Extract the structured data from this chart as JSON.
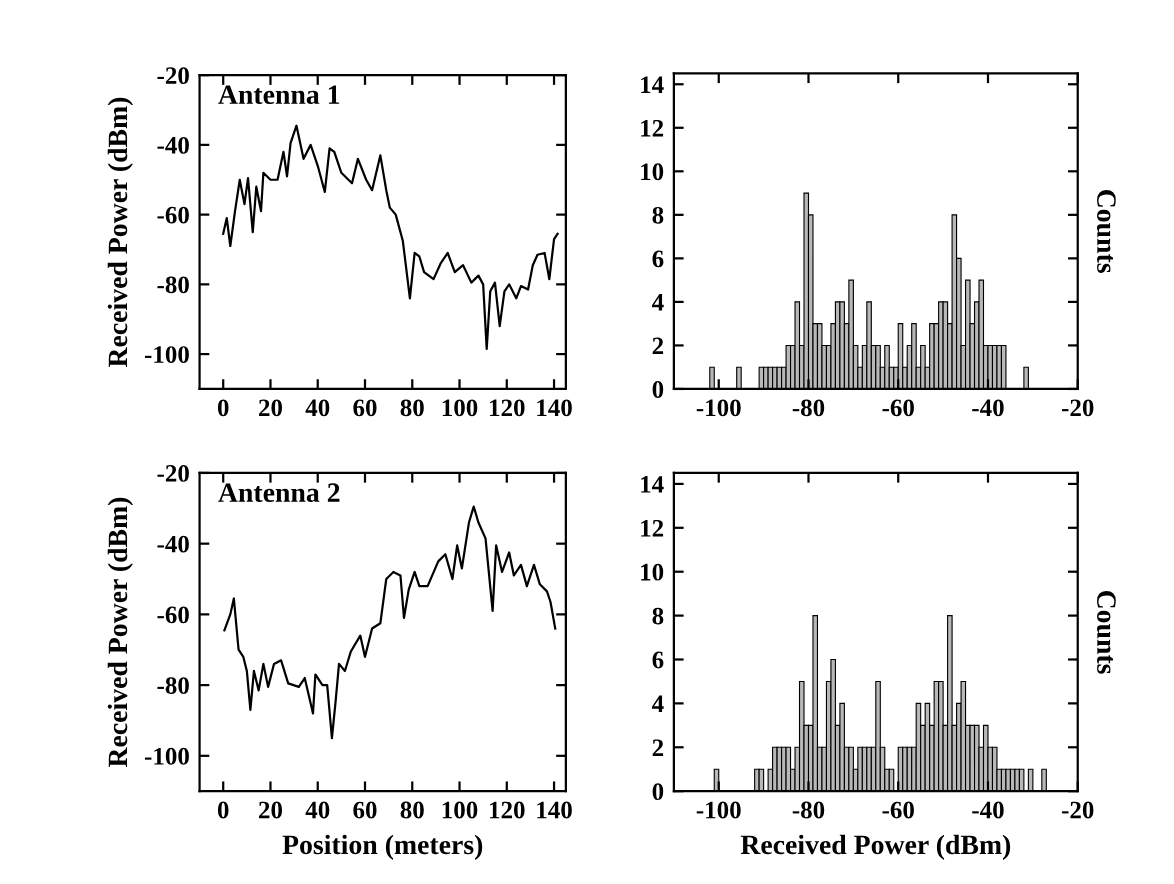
{
  "chart_data": [
    {
      "type": "line",
      "title": "Antenna 1",
      "ylabel": "Received Power (dBm)",
      "xlim": [
        -10,
        145
      ],
      "ylim": [
        -110,
        -20
      ],
      "xticks": [
        0,
        20,
        40,
        60,
        80,
        100,
        120,
        140
      ],
      "yticks": [
        -20,
        -40,
        -60,
        -80,
        -100
      ],
      "grid": false,
      "legend": false,
      "marker": "none",
      "line_style": "solid",
      "series": [
        {
          "color": "#000000",
          "x": [
            0,
            1.5,
            3,
            5,
            7,
            9,
            10.5,
            12.5,
            14,
            16,
            17,
            20,
            23,
            25.5,
            27,
            28.5,
            31,
            34,
            37,
            40,
            43,
            45,
            47,
            50,
            54.5,
            57,
            60.5,
            63,
            66.5,
            69,
            70.5,
            73,
            76,
            79,
            81,
            83,
            85,
            89,
            92,
            95,
            98,
            101.5,
            105,
            108,
            110,
            111.5,
            113,
            115,
            117,
            119,
            121,
            124,
            126,
            129,
            131,
            133,
            136,
            138,
            140,
            141.5
          ],
          "values": [
            -65.5,
            -61,
            -69,
            -59,
            -50,
            -57,
            -49.5,
            -65,
            -52,
            -59,
            -48,
            -50,
            -50,
            -42,
            -49,
            -39.5,
            -34.5,
            -44,
            -40,
            -46,
            -53.5,
            -41,
            -42,
            -48,
            -51,
            -44,
            -50,
            -53,
            -43,
            -53,
            -58,
            -60,
            -67.5,
            -84,
            -71,
            -72,
            -76.5,
            -78.5,
            -74,
            -71,
            -76.5,
            -74.5,
            -79.5,
            -77.5,
            -80,
            -98.5,
            -82,
            -79.5,
            -92,
            -82,
            -80,
            -84,
            -80.5,
            -81.5,
            -74.5,
            -71.5,
            -71,
            -78.5,
            -67,
            -65.5
          ]
        }
      ]
    },
    {
      "type": "histogram",
      "y2label": "Counts",
      "xlim": [
        -110,
        -20
      ],
      "ylim": [
        0,
        14.5
      ],
      "xticks": [
        -100,
        -80,
        -60,
        -40,
        -20
      ],
      "yticks": [
        0,
        2,
        4,
        6,
        8,
        10,
        12,
        14
      ],
      "grid": false,
      "legend": false,
      "color": "#b8b8b8",
      "bins": [
        -102,
        -101,
        -100,
        -99,
        -98,
        -97,
        -96,
        -95,
        -94,
        -93,
        -92,
        -91,
        -90,
        -89,
        -88,
        -87,
        -86,
        -85,
        -84,
        -83,
        -82,
        -81,
        -80,
        -79,
        -78,
        -77,
        -76,
        -75,
        -74,
        -73,
        -72,
        -71,
        -70,
        -69,
        -68,
        -67,
        -66,
        -65,
        -64,
        -63,
        -62,
        -61,
        -60,
        -59,
        -58,
        -57,
        -56,
        -55,
        -54,
        -53,
        -52,
        -51,
        -50,
        -49,
        -48,
        -47,
        -46,
        -45,
        -44,
        -43,
        -42,
        -41,
        -40,
        -39,
        -38,
        -37,
        -36,
        -35,
        -34,
        -33,
        -32,
        -31
      ],
      "values": [
        1,
        0,
        0,
        0,
        0,
        0,
        1,
        0,
        0,
        0,
        0,
        1,
        1,
        1,
        1,
        1,
        1,
        2,
        2,
        4,
        2,
        9,
        8,
        3,
        3,
        2,
        2,
        3,
        4,
        4,
        3,
        5,
        2,
        1,
        2,
        4,
        2,
        2,
        1,
        2,
        1,
        1,
        3,
        1,
        2,
        3,
        1,
        2,
        1,
        3,
        3,
        4,
        4,
        3,
        8,
        6,
        2,
        5,
        3,
        4,
        5,
        2,
        2,
        2,
        2,
        2,
        0,
        0,
        0,
        0,
        1
      ]
    },
    {
      "type": "line",
      "title": "Antenna 2",
      "xlabel": "Position (meters)",
      "ylabel": "Received Power (dBm)",
      "xlim": [
        -10,
        145
      ],
      "ylim": [
        -110,
        -20
      ],
      "xticks": [
        0,
        20,
        40,
        60,
        80,
        100,
        120,
        140
      ],
      "yticks": [
        -20,
        -40,
        -60,
        -80,
        -100
      ],
      "grid": false,
      "legend": false,
      "marker": "none",
      "line_style": "solid",
      "series": [
        {
          "color": "#000000",
          "x": [
            0.5,
            3,
            4.5,
            6.5,
            8.5,
            10,
            11.5,
            13,
            15,
            17,
            19,
            21.5,
            24.5,
            27.5,
            32,
            34.5,
            38,
            39,
            42,
            44,
            46,
            47.5,
            49,
            51.5,
            54,
            58,
            60,
            63,
            66.5,
            69,
            72,
            75,
            76.5,
            78.5,
            81,
            83,
            86.5,
            91,
            94,
            97,
            99,
            101,
            104,
            106,
            108,
            111,
            114,
            115.5,
            118,
            121,
            123,
            126,
            128.5,
            131.5,
            134,
            137,
            138.5,
            140.5
          ],
          "values": [
            -64.5,
            -60,
            -55.5,
            -70,
            -72,
            -76,
            -87,
            -76,
            -81.5,
            -74,
            -80.5,
            -74,
            -73,
            -79.5,
            -80.5,
            -78,
            -88,
            -77,
            -80,
            -80,
            -95,
            -85,
            -74,
            -76,
            -70.5,
            -66,
            -72,
            -64,
            -62.5,
            -50,
            -48,
            -49,
            -61,
            -53,
            -48,
            -52,
            -52,
            -45,
            -43,
            -50,
            -40.5,
            -47,
            -34,
            -29.5,
            -34,
            -38.5,
            -59,
            -40.5,
            -48,
            -42.5,
            -49,
            -46,
            -52,
            -46,
            -51.5,
            -53.5,
            -56.5,
            -64
          ]
        }
      ]
    },
    {
      "type": "histogram",
      "xlabel": "Received Power (dBm)",
      "y2label": "Counts",
      "xlim": [
        -110,
        -20
      ],
      "ylim": [
        0,
        14.5
      ],
      "xticks": [
        -100,
        -80,
        -60,
        -40,
        -20
      ],
      "yticks": [
        0,
        2,
        4,
        6,
        8,
        10,
        12,
        14
      ],
      "grid": false,
      "legend": false,
      "color": "#b8b8b8",
      "bins": [
        -101,
        -100,
        -99,
        -98,
        -97,
        -96,
        -95,
        -94,
        -93,
        -92,
        -91,
        -90,
        -89,
        -88,
        -87,
        -86,
        -85,
        -84,
        -83,
        -82,
        -81,
        -80,
        -79,
        -78,
        -77,
        -76,
        -75,
        -74,
        -73,
        -72,
        -71,
        -70,
        -69,
        -68,
        -67,
        -66,
        -65,
        -64,
        -63,
        -62,
        -61,
        -60,
        -59,
        -58,
        -57,
        -56,
        -55,
        -54,
        -53,
        -52,
        -51,
        -50,
        -49,
        -48,
        -47,
        -46,
        -45,
        -44,
        -43,
        -42,
        -41,
        -40,
        -39,
        -38,
        -37,
        -36,
        -35,
        -34,
        -33,
        -32,
        -31,
        -30,
        -29,
        -28,
        -27
      ],
      "values": [
        1,
        0,
        0,
        0,
        0,
        0,
        0,
        0,
        0,
        1,
        1,
        0,
        1,
        2,
        2,
        2,
        2,
        1,
        2,
        5,
        3,
        3,
        8,
        2,
        2,
        5,
        6,
        3,
        4,
        2,
        2,
        1,
        2,
        2,
        2,
        2,
        5,
        2,
        1,
        1,
        0,
        2,
        2,
        2,
        2,
        4,
        3,
        4,
        3,
        5,
        5,
        3,
        8,
        3,
        4,
        5,
        3,
        3,
        3,
        2,
        3,
        2,
        2,
        1,
        1,
        1,
        1,
        1,
        1,
        0,
        1,
        0,
        0,
        1
      ]
    }
  ]
}
